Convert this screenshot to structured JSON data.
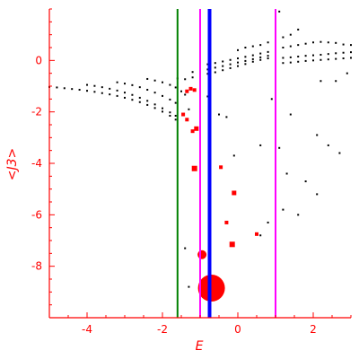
{
  "chart_data": {
    "type": "scatter",
    "xlabel": "E",
    "ylabel": "<J3>",
    "xlim": [
      -5,
      3
    ],
    "ylim": [
      -10,
      2
    ],
    "grid": false,
    "x_ticks": [
      -4,
      -2,
      0,
      2
    ],
    "y_ticks": [
      0,
      -2,
      -4,
      -6,
      -8
    ],
    "axis_color": "#ff0000",
    "vertical_lines": [
      {
        "x": -1.6,
        "color": "#008000",
        "style": "solid"
      },
      {
        "x": -1.0,
        "color": "#ff00ff",
        "style": "solid"
      },
      {
        "x": -0.75,
        "color": "#0000ff",
        "style": "solid-thick"
      },
      {
        "x": 1.0,
        "color": "#ff00ff",
        "style": "solid"
      }
    ],
    "series": [
      {
        "color": "#000000",
        "marker": "small-dot",
        "points": [
          [
            -5.0,
            -1.03
          ],
          [
            -4.8,
            -1.05
          ],
          [
            -4.6,
            -1.08
          ],
          [
            -4.4,
            -1.11
          ],
          [
            -4.2,
            -1.14
          ],
          [
            -4.0,
            -1.18
          ],
          [
            -3.8,
            -1.22
          ],
          [
            -3.6,
            -1.27
          ],
          [
            -3.4,
            -1.32
          ],
          [
            -3.2,
            -1.38
          ],
          [
            -3.0,
            -1.45
          ],
          [
            -2.8,
            -1.53
          ],
          [
            -2.6,
            -1.62
          ],
          [
            -2.4,
            -1.73
          ],
          [
            -2.2,
            -1.85
          ],
          [
            -2.0,
            -1.99
          ],
          [
            -1.8,
            -2.15
          ],
          [
            -1.65,
            -2.3
          ],
          [
            -4.0,
            -0.95
          ],
          [
            -3.8,
            -0.99
          ],
          [
            -3.6,
            -1.04
          ],
          [
            -3.4,
            -1.1
          ],
          [
            -3.2,
            -1.17
          ],
          [
            -3.0,
            -1.25
          ],
          [
            -2.8,
            -1.34
          ],
          [
            -2.6,
            -1.45
          ],
          [
            -2.4,
            -1.57
          ],
          [
            -2.2,
            -1.71
          ],
          [
            -2.0,
            -1.86
          ],
          [
            -1.8,
            -2.02
          ],
          [
            -1.65,
            -2.15
          ],
          [
            -3.2,
            -0.85
          ],
          [
            -3.0,
            -0.9
          ],
          [
            -2.8,
            -0.96
          ],
          [
            -2.6,
            -1.04
          ],
          [
            -2.4,
            -1.14
          ],
          [
            -2.2,
            -1.25
          ],
          [
            -2.0,
            -1.38
          ],
          [
            -1.8,
            -1.52
          ],
          [
            -1.65,
            -1.65
          ],
          [
            -2.4,
            -0.72
          ],
          [
            -2.2,
            -0.78
          ],
          [
            -2.0,
            -0.85
          ],
          [
            -1.8,
            -0.95
          ],
          [
            -1.65,
            -1.05
          ],
          [
            -1.5,
            -1.2
          ],
          [
            -1.4,
            -1.33
          ],
          [
            -1.6,
            -0.7
          ],
          [
            -1.4,
            -0.73
          ],
          [
            -1.2,
            -0.66
          ],
          [
            -1.0,
            -0.6
          ],
          [
            -0.8,
            -0.52
          ],
          [
            -0.6,
            -0.46
          ],
          [
            -0.4,
            -0.38
          ],
          [
            -0.2,
            -0.3
          ],
          [
            0.0,
            -0.22
          ],
          [
            0.2,
            -0.14
          ],
          [
            0.4,
            -0.05
          ],
          [
            0.6,
            0.02
          ],
          [
            0.8,
            0.08
          ],
          [
            1.0,
            0.14
          ],
          [
            -1.2,
            -0.45
          ],
          [
            -1.0,
            -0.4
          ],
          [
            -0.8,
            -0.35
          ],
          [
            -0.6,
            -0.28
          ],
          [
            -0.4,
            -0.22
          ],
          [
            -0.2,
            -0.15
          ],
          [
            0.0,
            -0.08
          ],
          [
            0.2,
            -0.02
          ],
          [
            0.4,
            0.05
          ],
          [
            0.6,
            0.12
          ],
          [
            0.8,
            0.18
          ],
          [
            1.0,
            0.25
          ],
          [
            -0.8,
            -0.15
          ],
          [
            -0.6,
            -0.1
          ],
          [
            -0.4,
            -0.04
          ],
          [
            -0.2,
            0.02
          ],
          [
            0.0,
            0.08
          ],
          [
            0.2,
            0.14
          ],
          [
            0.4,
            0.2
          ],
          [
            0.6,
            0.27
          ],
          [
            0.8,
            0.33
          ],
          [
            1.0,
            0.4
          ],
          [
            0.6,
            0.6
          ],
          [
            0.8,
            0.7
          ],
          [
            1.0,
            0.8
          ],
          [
            1.2,
            0.9
          ],
          [
            1.4,
            1.0
          ],
          [
            1.2,
            0.5
          ],
          [
            1.4,
            0.55
          ],
          [
            1.6,
            0.6
          ],
          [
            1.8,
            0.65
          ],
          [
            2.0,
            0.7
          ],
          [
            2.2,
            0.72
          ],
          [
            2.4,
            0.7
          ],
          [
            2.6,
            0.68
          ],
          [
            2.8,
            0.62
          ],
          [
            3.0,
            0.6
          ],
          [
            1.2,
            0.1
          ],
          [
            1.4,
            0.12
          ],
          [
            1.6,
            0.15
          ],
          [
            1.8,
            0.18
          ],
          [
            2.0,
            0.2
          ],
          [
            2.2,
            0.22
          ],
          [
            2.4,
            0.25
          ],
          [
            2.6,
            0.28
          ],
          [
            2.8,
            0.3
          ],
          [
            3.0,
            0.32
          ],
          [
            1.2,
            -0.1
          ],
          [
            1.4,
            -0.08
          ],
          [
            1.6,
            -0.05
          ],
          [
            1.8,
            -0.02
          ],
          [
            2.0,
            0.0
          ],
          [
            2.2,
            0.02
          ],
          [
            2.4,
            0.04
          ],
          [
            2.6,
            0.06
          ],
          [
            2.8,
            0.08
          ],
          [
            3.0,
            0.1
          ],
          [
            0.0,
            0.4
          ],
          [
            0.2,
            0.5
          ],
          [
            0.4,
            0.55
          ],
          [
            1.1,
            1.9
          ],
          [
            1.6,
            1.2
          ],
          [
            2.2,
            -0.8
          ],
          [
            2.6,
            -0.8
          ],
          [
            2.9,
            -0.5
          ],
          [
            0.9,
            -1.5
          ],
          [
            1.4,
            -2.1
          ],
          [
            2.1,
            -2.9
          ],
          [
            2.4,
            -3.3
          ],
          [
            2.7,
            -3.6
          ],
          [
            0.6,
            -3.3
          ],
          [
            1.1,
            -3.4
          ],
          [
            1.3,
            -4.4
          ],
          [
            1.8,
            -4.7
          ],
          [
            2.1,
            -5.2
          ],
          [
            1.2,
            -5.8
          ],
          [
            1.6,
            -6.0
          ],
          [
            0.8,
            -6.3
          ],
          [
            0.6,
            -6.8
          ],
          [
            -0.1,
            -3.7
          ],
          [
            -0.3,
            -2.2
          ],
          [
            -0.5,
            -2.1
          ],
          [
            -0.8,
            -1.4
          ],
          [
            -1.3,
            -1.9
          ],
          [
            -0.5,
            -9.2
          ],
          [
            -0.7,
            -8.6
          ],
          [
            -1.3,
            -8.8
          ],
          [
            -1.4,
            -7.3
          ]
        ]
      },
      {
        "color": "#ff0000",
        "marker": "scaled-square",
        "points": [
          [
            -1.35,
            -1.2,
            1
          ],
          [
            -1.25,
            -1.1,
            1
          ],
          [
            -1.15,
            -1.15,
            1
          ],
          [
            -1.45,
            -2.1,
            1
          ],
          [
            -1.35,
            -2.3,
            1
          ],
          [
            -1.2,
            -2.75,
            1
          ],
          [
            -1.1,
            -2.65,
            1.5
          ],
          [
            -1.15,
            -4.2,
            2
          ],
          [
            -0.45,
            -4.15,
            1
          ],
          [
            -0.1,
            -5.15,
            1.5
          ],
          [
            -0.75,
            -6.2,
            1
          ],
          [
            -0.3,
            -6.3,
            1
          ],
          [
            0.5,
            -6.75,
            1
          ],
          [
            -0.15,
            -7.15,
            2
          ]
        ]
      },
      {
        "color": "#ff0000",
        "marker": "circle",
        "points": [
          [
            -0.95,
            -7.55,
            5
          ],
          [
            -0.7,
            -8.85,
            15
          ]
        ]
      }
    ]
  }
}
